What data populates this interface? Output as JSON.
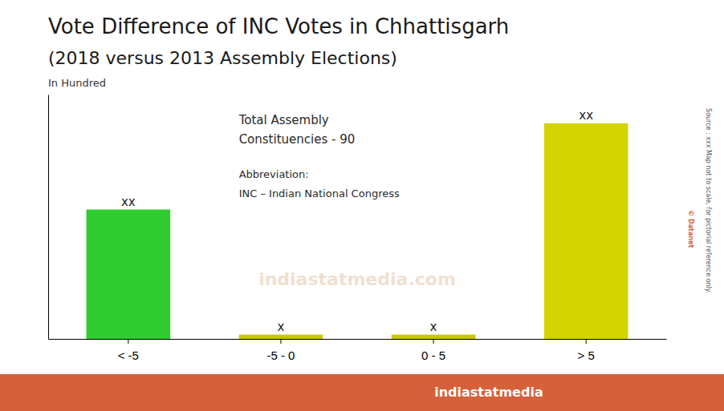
{
  "chart_data": {
    "type": "bar",
    "title": "Vote Difference of INC Votes in Chhattisgarh",
    "subtitle": "(2018 versus 2013 Assembly Elections)",
    "categories": [
      "< -5",
      "-5 - 0",
      "0 - 5",
      "> 5"
    ],
    "values": [
      18,
      0.6,
      0.6,
      30
    ],
    "value_labels": [
      "xx",
      "x",
      "x",
      "xx"
    ],
    "data_labels": true,
    "colors": [
      "#2ecc2e",
      "#c8c800",
      "#c8c800",
      "#d4d400"
    ],
    "ylim": [
      0,
      34
    ],
    "tick_labels": "x",
    "grid": false,
    "annotations": [
      "Total Assembly",
      "Constituencies - 90",
      "Abbreviation:",
      "INC – Indian National Congress",
      "In Hundred",
      "Source : xxx   Map not to scale, for pictorial reference only.",
      "© Datanet",
      "indiastatmedia.com",
      "indiastatmedia"
    ]
  }
}
